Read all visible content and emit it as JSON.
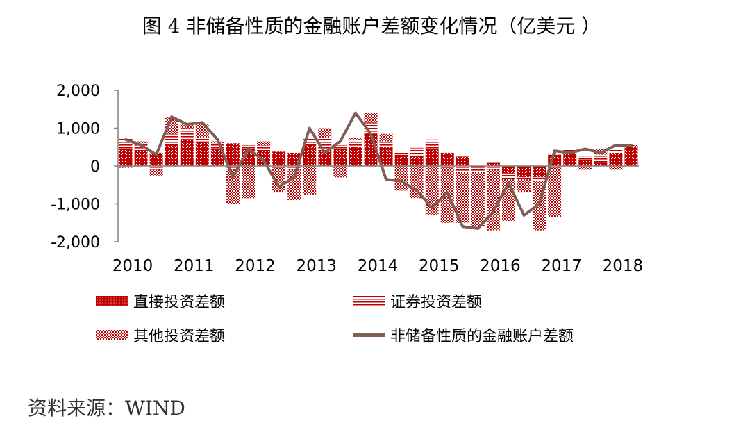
{
  "title": "图 4 非储备性质的金融账户差额变化情况（亿美元 ）",
  "source": "资料来源：WIND",
  "colors": {
    "direct": "#C00000",
    "portfolio": "#C00000",
    "other": "#C00000",
    "net_line": "#7F5F55",
    "axis": "#808080"
  },
  "chart_data": {
    "type": "bar",
    "stacked": true,
    "title": "",
    "xlabel": "",
    "ylabel": "",
    "ylim": [
      -2000,
      2000
    ],
    "yticks": [
      "2,000",
      "1,000",
      "0",
      "-1,000",
      "-2,000"
    ],
    "ytick_values": [
      2000,
      1000,
      0,
      -1000,
      -2000
    ],
    "xticks": [
      "2010",
      "2011",
      "2012",
      "2013",
      "2014",
      "2015",
      "2016",
      "2017",
      "2018"
    ],
    "x": [
      "2010Q1",
      "2010Q2",
      "2010Q3",
      "2010Q4",
      "2011Q1",
      "2011Q2",
      "2011Q3",
      "2011Q4",
      "2012Q1",
      "2012Q2",
      "2012Q3",
      "2012Q4",
      "2013Q1",
      "2013Q2",
      "2013Q3",
      "2013Q4",
      "2014Q1",
      "2014Q2",
      "2014Q3",
      "2014Q4",
      "2015Q1",
      "2015Q2",
      "2015Q3",
      "2015Q4",
      "2016Q1",
      "2016Q2",
      "2016Q3",
      "2016Q4",
      "2017Q1",
      "2017Q2",
      "2017Q3",
      "2017Q4",
      "2018Q1",
      "2018Q2"
    ],
    "legend_position": "bottom",
    "series": [
      {
        "name": "直接投资差额",
        "kind": "bar",
        "values": [
          450,
          400,
          350,
          550,
          700,
          650,
          450,
          600,
          450,
          400,
          380,
          350,
          550,
          400,
          450,
          500,
          850,
          500,
          300,
          280,
          450,
          350,
          250,
          -50,
          100,
          -200,
          -300,
          -300,
          300,
          350,
          150,
          100,
          350,
          500
        ]
      },
      {
        "name": "证券投资差额",
        "kind": "bar",
        "values": [
          300,
          200,
          -100,
          300,
          300,
          100,
          150,
          -100,
          100,
          150,
          -50,
          -100,
          200,
          350,
          100,
          200,
          300,
          150,
          100,
          200,
          250,
          -50,
          -150,
          -100,
          -100,
          -150,
          -50,
          -100,
          -50,
          100,
          100,
          200,
          100,
          0
        ]
      },
      {
        "name": "其他投资差额",
        "kind": "bar",
        "values": [
          -50,
          50,
          -150,
          450,
          100,
          350,
          50,
          -900,
          -850,
          100,
          -650,
          -800,
          -750,
          250,
          -300,
          50,
          250,
          200,
          -650,
          -850,
          -1300,
          -1450,
          -1350,
          -1450,
          -1600,
          -1100,
          -350,
          -1300,
          -1300,
          0,
          -100,
          150,
          -100,
          50
        ]
      },
      {
        "name": "非储备性质的金融账户差额",
        "kind": "line",
        "values": [
          700,
          550,
          300,
          1300,
          1100,
          1150,
          700,
          -300,
          450,
          150,
          -550,
          -300,
          1000,
          350,
          650,
          1400,
          850,
          -350,
          -400,
          -650,
          -1100,
          -700,
          -1600,
          -1650,
          -1200,
          -450,
          -1300,
          -1000,
          400,
          350,
          450,
          350,
          550,
          550
        ]
      }
    ]
  }
}
